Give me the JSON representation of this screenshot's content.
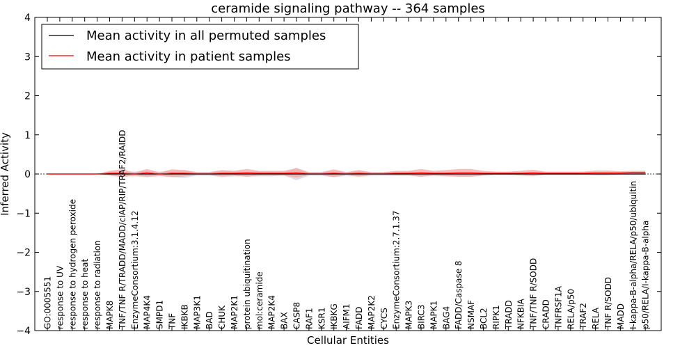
{
  "chart_data": {
    "type": "line",
    "title": "ceramide signaling pathway -- 364 samples",
    "xlabel": "Cellular Entities",
    "ylabel": "Inferred Activity",
    "ylim": [
      -4,
      4
    ],
    "yticks": [
      "-4",
      "-3",
      "-2",
      "-1",
      "0",
      "1",
      "2",
      "3",
      "4"
    ],
    "legend_position": "top-left",
    "colors": {
      "permuted": "#000000",
      "patient": "#ff0000",
      "patient_band": "#f4a8a8",
      "permuted_band": "#c8c8d8"
    },
    "categories": [
      "GO:0005551",
      "response to UV",
      "response to hydrogen peroxide",
      "response to heat",
      "response to radiation",
      "MAPK8",
      "TNF/TNF R/TRADD/MADD/cIAP/RIP/TRAF2/RAIDD",
      "EnzymeConsortium:3.1.4.12",
      "MAP4K4",
      "SMPD1",
      "TNF",
      "IKBKB",
      "MAP3K1",
      "BAD",
      "CHUK",
      "MAP2K1",
      "protein ubiquitination",
      "mol:ceramide",
      "MAP2K4",
      "BAX",
      "CASP8",
      "RAF1",
      "KSR1",
      "IKBKG",
      "AIFM1",
      "FADD",
      "MAP2K2",
      "CYCS",
      "EnzymeConsortium:2.7.1.37",
      "MAPK3",
      "BIRC3",
      "MAPK1",
      "BAG4",
      "FADD/Caspase 8",
      "NSMAF",
      "BCL2",
      "RIPK1",
      "TRADD",
      "NFKBIA",
      "TNF/TNF R/SODD",
      "CRADD",
      "TNFRSF1A",
      "RELA/p50",
      "TRAF2",
      "RELA",
      "TNF R/SODD",
      "MADD",
      "I-kappa-B-alpha/RELA/p50/ubiquitin",
      "p50/RELA/I-kappa-B-alpha"
    ],
    "series": [
      {
        "name": "Mean activity in all permuted samples",
        "values": [
          0,
          0,
          0,
          0,
          0,
          0,
          0,
          0,
          0,
          0,
          0,
          0,
          0,
          0,
          0,
          0,
          0,
          0,
          0,
          0,
          0,
          0,
          0,
          0,
          0,
          0,
          0,
          0,
          0,
          0,
          0,
          0,
          0,
          0,
          0,
          0,
          0,
          0,
          0,
          0,
          0,
          0,
          0,
          0,
          0,
          0,
          0,
          0,
          0
        ],
        "band": [
          0,
          0,
          0,
          0,
          0,
          0.02,
          0.06,
          0.06,
          0.08,
          0.06,
          0.08,
          0.1,
          0.04,
          0.04,
          0.08,
          0.06,
          0.06,
          0.06,
          0.06,
          0.04,
          0.16,
          0.04,
          0.04,
          0.08,
          0.04,
          0.08,
          0.04,
          0.04,
          0.04,
          0.04,
          0.06,
          0.04,
          0.04,
          0.06,
          0.06,
          0.04,
          0.02,
          0.02,
          0.02,
          0.04,
          0.02,
          0.02,
          0.02,
          0.02,
          0.02,
          0.02,
          0.02,
          0.02,
          0.02
        ]
      },
      {
        "name": "Mean activity in patient samples",
        "values": [
          0,
          0,
          0,
          0,
          0,
          0.02,
          0.02,
          0,
          0.03,
          0,
          0.02,
          0.02,
          0.01,
          0.01,
          0.02,
          0.02,
          0.03,
          0.02,
          0.02,
          0.02,
          0.03,
          0.01,
          0.01,
          0.02,
          0.01,
          0.02,
          0.01,
          0.01,
          0.02,
          0.02,
          0.03,
          0.02,
          0.02,
          0.03,
          0.03,
          0.02,
          0.02,
          0.02,
          0.02,
          0.03,
          0.02,
          0.02,
          0.02,
          0.02,
          0.03,
          0.03,
          0.03,
          0.04,
          0.04
        ],
        "band": [
          0,
          0,
          0,
          0,
          0,
          0.06,
          0.1,
          0.04,
          0.1,
          0.04,
          0.1,
          0.08,
          0.04,
          0.04,
          0.08,
          0.06,
          0.1,
          0.06,
          0.06,
          0.06,
          0.12,
          0.04,
          0.04,
          0.1,
          0.04,
          0.08,
          0.04,
          0.04,
          0.06,
          0.06,
          0.1,
          0.06,
          0.08,
          0.1,
          0.1,
          0.06,
          0.04,
          0.04,
          0.06,
          0.08,
          0.04,
          0.04,
          0.04,
          0.04,
          0.06,
          0.06,
          0.04,
          0.04,
          0.04
        ]
      }
    ]
  }
}
